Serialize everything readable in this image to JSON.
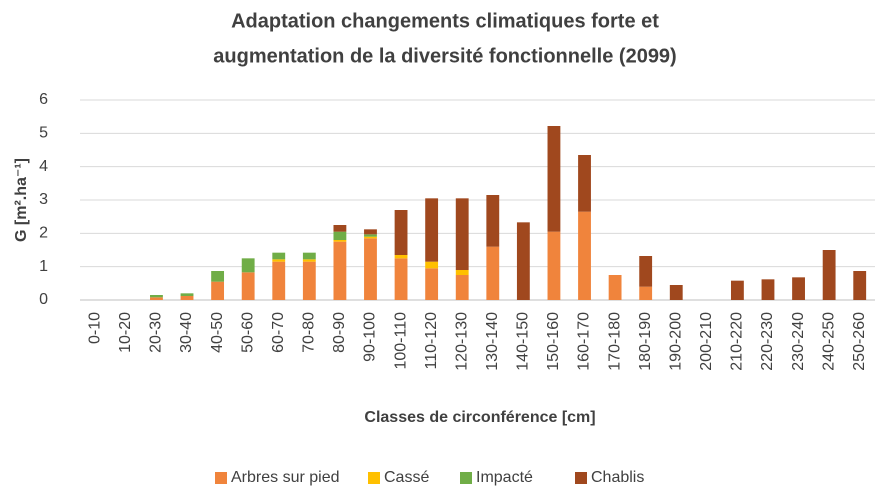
{
  "chart_data": {
    "type": "bar",
    "stacked": true,
    "title": [
      "Adaptation changements climatiques forte et",
      "augmentation de la diversité fonctionnelle (2099)"
    ],
    "x_label": "Classes de circonférence [cm]",
    "y_label": "G [m².ha⁻¹]",
    "categories": [
      "0-10",
      "10-20",
      "20-30",
      "30-40",
      "40-50",
      "50-60",
      "60-70",
      "70-80",
      "80-90",
      "90-100",
      "100-110",
      "110-120",
      "120-130",
      "130-140",
      "140-150",
      "150-160",
      "160-170",
      "170-180",
      "180-190",
      "190-200",
      "200-210",
      "210-220",
      "220-230",
      "230-240",
      "240-250",
      "250-260"
    ],
    "series": [
      {
        "name": "Arbres sur pied",
        "color": "#f0843c",
        "values": [
          0,
          0,
          0.08,
          0.12,
          0.55,
          0.83,
          1.15,
          1.15,
          1.75,
          1.85,
          1.25,
          0.95,
          0.75,
          1.6,
          0,
          2.05,
          2.65,
          0.75,
          0.4,
          0,
          0,
          0,
          0,
          0,
          0,
          0
        ]
      },
      {
        "name": "Cassé",
        "color": "#ffc000",
        "values": [
          0,
          0,
          0,
          0,
          0,
          0,
          0.07,
          0.07,
          0.05,
          0.05,
          0.1,
          0.2,
          0.15,
          0,
          0,
          0,
          0,
          0,
          0,
          0,
          0,
          0,
          0,
          0,
          0,
          0
        ]
      },
      {
        "name": "Impacté",
        "color": "#70ad47",
        "values": [
          0,
          0,
          0.07,
          0.08,
          0.32,
          0.42,
          0.2,
          0.2,
          0.25,
          0.07,
          0,
          0,
          0,
          0,
          0,
          0,
          0,
          0,
          0,
          0,
          0,
          0,
          0,
          0,
          0,
          0
        ]
      },
      {
        "name": "Chablis",
        "color": "#a0481e",
        "values": [
          0,
          0,
          0,
          0,
          0,
          0,
          0,
          0,
          0.2,
          0.15,
          1.35,
          1.9,
          2.15,
          1.55,
          2.33,
          3.17,
          1.7,
          0,
          0.92,
          0.45,
          0,
          0.58,
          0.62,
          0.68,
          1.5,
          0.87
        ]
      }
    ],
    "ylim": [
      0,
      6
    ],
    "yticks": [
      0,
      1,
      2,
      3,
      4,
      5,
      6
    ],
    "grid": true,
    "legend": "bottom"
  }
}
